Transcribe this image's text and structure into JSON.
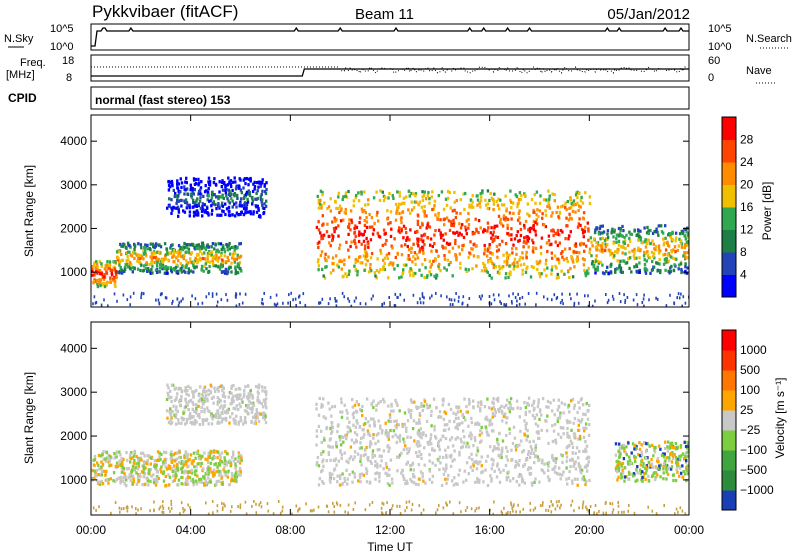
{
  "header": {
    "radar": "Pykkvibaer (fitACF)",
    "beam": "Beam 11",
    "date": "05/Jan/2012"
  },
  "strips": {
    "nsky_label": "N.Sky",
    "nsky_ticks": [
      "10^5",
      "10^0"
    ],
    "nsearch_label": "N.Search",
    "nsearch_ticks": [
      "10^5",
      "10^0"
    ],
    "freq_label_top": "Freq.",
    "freq_label_bottom": "[MHz]",
    "freq_ticks": [
      "18",
      "8"
    ],
    "nave_label": "Nave",
    "nave_ticks": [
      "60",
      "0"
    ],
    "cpid_label": "CPID",
    "cpid_text": "normal (fast stereo) 153"
  },
  "chart_data": [
    {
      "type": "heatmap",
      "panel": "power",
      "ylabel": "Slant Range [km]",
      "y_ticks": [
        1000,
        2000,
        3000,
        4000
      ],
      "ylim": [
        200,
        4600
      ],
      "xlim_hours": [
        0,
        24
      ],
      "colorbar_label": "Power [dB]",
      "colorbar_ticks": [
        "28",
        "24",
        "20",
        "16",
        "12",
        "8",
        "4"
      ],
      "colorbar_colors": [
        "#0000ff",
        "#2244b8",
        "#1e7f46",
        "#2fa84f",
        "#f0c000",
        "#ff8c00",
        "#ff4500",
        "#ff0000"
      ],
      "scatter_regions": [
        {
          "t_start": "00:00",
          "t_end": "01:00",
          "range_km": [
            700,
            1300
          ],
          "level": "strong"
        },
        {
          "t_start": "01:00",
          "t_end": "06:00",
          "range_km": [
            1000,
            1700
          ],
          "level": "moderate"
        },
        {
          "t_start": "03:00",
          "t_end": "07:00",
          "range_km": [
            2300,
            3200
          ],
          "level": "weak"
        },
        {
          "t_start": "09:00",
          "t_end": "20:00",
          "range_km": [
            900,
            2900
          ],
          "level": "strong"
        },
        {
          "t_start": "20:00",
          "t_end": "24:00",
          "range_km": [
            1000,
            2100
          ],
          "level": "moderate"
        }
      ]
    },
    {
      "type": "heatmap",
      "panel": "velocity",
      "ylabel": "Slant Range [km]",
      "y_ticks": [
        1000,
        2000,
        3000,
        4000
      ],
      "ylim": [
        200,
        4600
      ],
      "xlim_hours": [
        0,
        24
      ],
      "x_ticks": [
        "00:00",
        "04:00",
        "08:00",
        "12:00",
        "16:00",
        "20:00",
        "00:00"
      ],
      "xlabel": "Time UT",
      "colorbar_label": "Velocity [m s⁻¹]",
      "colorbar_ticks": [
        "1000",
        "500",
        "100",
        "25",
        "−25",
        "−100",
        "−500",
        "−1000"
      ],
      "colorbar_colors": [
        "#1a3fb5",
        "#2e8b3c",
        "#3fa63f",
        "#7ccd3f",
        "#c8c8c8",
        "#ffa500",
        "#ff7700",
        "#ff3300",
        "#ff0000"
      ],
      "scatter_regions": [
        {
          "t_start": "00:00",
          "t_end": "06:00",
          "range_km": [
            900,
            1700
          ],
          "velocity": "mixed ±100"
        },
        {
          "t_start": "03:00",
          "t_end": "07:00",
          "range_km": [
            2300,
            3200
          ],
          "velocity": "near zero"
        },
        {
          "t_start": "09:00",
          "t_end": "20:00",
          "range_km": [
            900,
            2900
          ],
          "velocity": "near zero"
        },
        {
          "t_start": "21:00",
          "t_end": "24:00",
          "range_km": [
            1000,
            1900
          ],
          "velocity": "-100 to 100"
        }
      ]
    }
  ]
}
